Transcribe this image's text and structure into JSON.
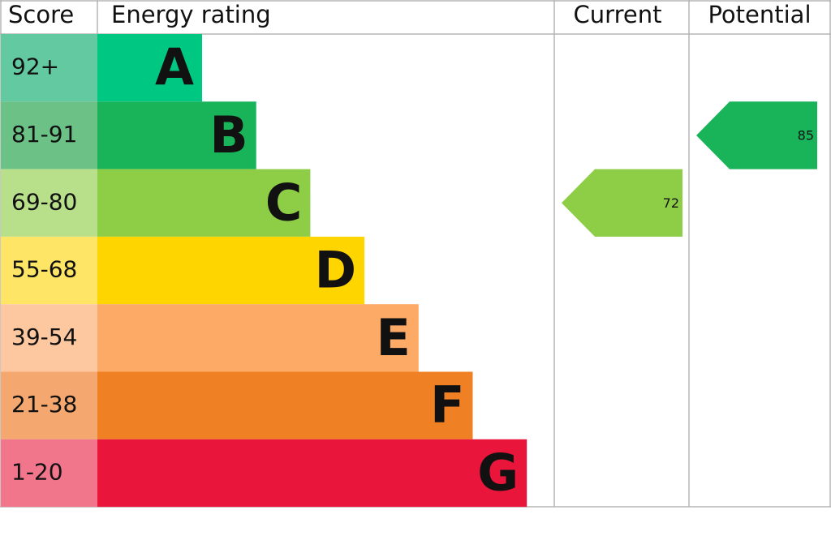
{
  "header": {
    "score": "Score",
    "energy_rating": "Energy rating",
    "current": "Current",
    "potential": "Potential"
  },
  "bands": [
    {
      "score": "92+",
      "rating": "A",
      "color": "#00c781",
      "score_color": "#63c9a1"
    },
    {
      "score": "81-91",
      "rating": "B",
      "color": "#19b459",
      "score_color": "#6cc186"
    },
    {
      "score": "69-80",
      "rating": "C",
      "color": "#8dce46",
      "score_color": "#b8df8a"
    },
    {
      "score": "55-68",
      "rating": "D",
      "color": "#ffd500",
      "score_color": "#ffe566"
    },
    {
      "score": "39-54",
      "rating": "E",
      "color": "#fcaa65",
      "score_color": "#fdc8a0"
    },
    {
      "score": "21-38",
      "rating": "F",
      "color": "#ef8023",
      "score_color": "#f4a870"
    },
    {
      "score": "1-20",
      "rating": "G",
      "color": "#e9153b",
      "score_color": "#f1768b"
    }
  ],
  "current": {
    "value": 72
  },
  "potential": {
    "value": 85
  }
}
